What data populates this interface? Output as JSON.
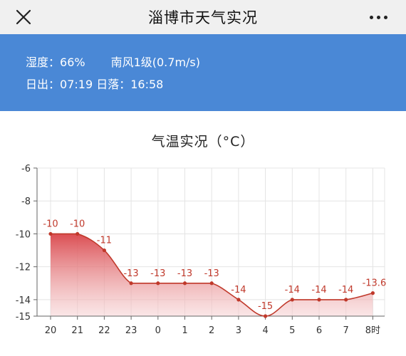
{
  "header": {
    "title": "淄博市天气实况",
    "close_icon": "close-icon",
    "more_icon": "more-icon"
  },
  "info": {
    "humidity_label": "湿度：",
    "humidity_value": "66%",
    "wind": "南风1级(0.7m/s)",
    "sunrise_label": "日出：",
    "sunrise_value": "07:19",
    "sunset_label": "日落：",
    "sunset_value": "16:58"
  },
  "colors": {
    "accent_blue": "#4a88d6",
    "line_red": "#c0392b"
  },
  "chart_data": {
    "type": "area",
    "title": "气温实况（°C）",
    "categories": [
      "20",
      "21",
      "22",
      "23",
      "0",
      "1",
      "2",
      "3",
      "4",
      "5",
      "6",
      "7",
      "8时"
    ],
    "values": [
      -10,
      -10,
      -11,
      -13,
      -13,
      -13,
      -13,
      -14,
      -15,
      -14,
      -14,
      -14,
      -13.6
    ],
    "value_labels": [
      "-10",
      "-10",
      "-11",
      "-13",
      "-13",
      "-13",
      "-13",
      "-14",
      "-15",
      "-14",
      "-14",
      "-14",
      "-13.6"
    ],
    "yticks": [
      "-6",
      "-8",
      "-10",
      "-12",
      "-14",
      "-15"
    ],
    "ytick_values": [
      -6,
      -8,
      -10,
      -12,
      -14,
      -15
    ],
    "ylim": [
      -15,
      -6
    ],
    "grid": true
  }
}
